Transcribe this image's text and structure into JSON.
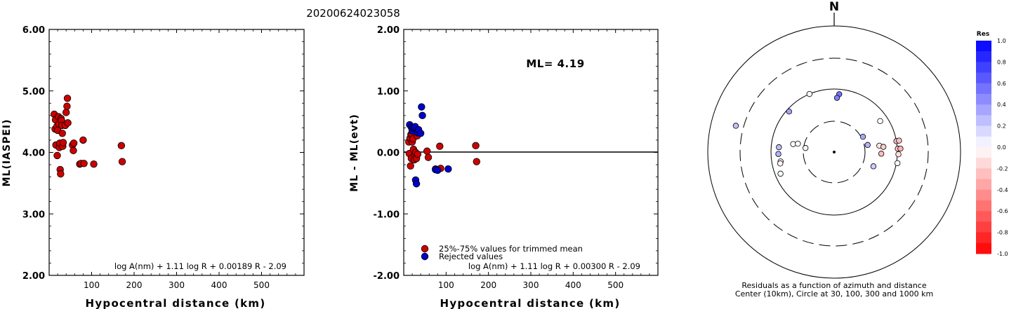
{
  "title": "20200624023058",
  "colors": {
    "accepted": "#cc0000",
    "rejected": "#0000cc",
    "zero_line": "#000000"
  },
  "chart_data": [
    {
      "type": "scatter",
      "id": "ml-vs-distance",
      "xlabel": "Hypocentral distance (km)",
      "ylabel": "ML(IASPEI)",
      "xlim": [
        0,
        600
      ],
      "ylim": [
        2.0,
        6.0
      ],
      "xticks": [
        "100",
        "200",
        "300",
        "400",
        "500"
      ],
      "yticks": [
        "2.00",
        "3.00",
        "4.00",
        "5.00",
        "6.00"
      ],
      "formula": "log A(nm) + 1.11 log R + 0.00189 R - 2.09",
      "series": [
        {
          "role": "accepted",
          "points": [
            [
              12,
              4.62
            ],
            [
              14,
              4.38
            ],
            [
              15,
              4.53
            ],
            [
              16,
              4.12
            ],
            [
              18,
              4.42
            ],
            [
              19,
              3.95
            ],
            [
              20,
              4.36
            ],
            [
              22,
              4.58
            ],
            [
              23,
              4.46
            ],
            [
              24,
              4.08
            ],
            [
              25,
              4.15
            ],
            [
              26,
              3.72
            ],
            [
              27,
              3.65
            ],
            [
              28,
              4.55
            ],
            [
              29,
              4.52
            ],
            [
              30,
              4.44
            ],
            [
              31,
              4.31
            ],
            [
              32,
              4.1
            ],
            [
              33,
              4.16
            ],
            [
              38,
              4.44
            ],
            [
              40,
              4.65
            ],
            [
              42,
              4.75
            ],
            [
              43,
              4.88
            ],
            [
              44,
              4.48
            ],
            [
              55,
              4.12
            ],
            [
              57,
              4.03
            ],
            [
              58,
              4.15
            ],
            [
              72,
              3.81
            ],
            [
              75,
              3.82
            ],
            [
              80,
              4.2
            ],
            [
              82,
              3.82
            ],
            [
              105,
              3.81
            ],
            [
              170,
              4.11
            ],
            [
              172,
              3.85
            ]
          ]
        }
      ]
    },
    {
      "type": "scatter",
      "id": "residual-vs-distance",
      "xlabel": "Hypocentral distance (km)",
      "ylabel": "ML - ML(evt)",
      "xlim": [
        0,
        600
      ],
      "ylim": [
        -2.0,
        2.0
      ],
      "xticks": [
        "100",
        "200",
        "300",
        "400",
        "500"
      ],
      "yticks": [
        "-2.00",
        "-1.00",
        "0.00",
        "1.00",
        "2.00"
      ],
      "annotation": "ML= 4.19",
      "formula": "log A(nm) + 1.11 log R + 0.00300 R - 2.09",
      "legend": [
        {
          "role": "accepted",
          "label": "25%-75% values for trimmed mean"
        },
        {
          "role": "rejected",
          "label": "Rejected values"
        }
      ],
      "series": [
        {
          "role": "accepted",
          "points": [
            [
              12,
              0.17
            ],
            [
              13,
              -0.02
            ],
            [
              15,
              0.23
            ],
            [
              16,
              -0.22
            ],
            [
              17,
              0.29
            ],
            [
              18,
              -0.1
            ],
            [
              19,
              0.3
            ],
            [
              20,
              0.17
            ],
            [
              22,
              0.22
            ],
            [
              23,
              0.05
            ],
            [
              25,
              -0.12
            ],
            [
              26,
              -0.04
            ],
            [
              28,
              0.0
            ],
            [
              30,
              -0.1
            ],
            [
              32,
              0.27
            ],
            [
              33,
              -0.03
            ],
            [
              55,
              0.02
            ],
            [
              58,
              -0.08
            ],
            [
              75,
              -0.27
            ],
            [
              85,
              0.1
            ],
            [
              87,
              -0.26
            ],
            [
              170,
              0.11
            ],
            [
              172,
              -0.15
            ]
          ]
        },
        {
          "role": "rejected",
          "points": [
            [
              14,
              0.45
            ],
            [
              18,
              0.41
            ],
            [
              20,
              0.35
            ],
            [
              22,
              0.4
            ],
            [
              25,
              0.4
            ],
            [
              27,
              0.42
            ],
            [
              28,
              -0.45
            ],
            [
              30,
              -0.51
            ],
            [
              33,
              0.32
            ],
            [
              35,
              0.37
            ],
            [
              40,
              0.31
            ],
            [
              42,
              0.74
            ],
            [
              44,
              0.6
            ],
            [
              75,
              -0.28
            ],
            [
              80,
              -0.29
            ],
            [
              105,
              -0.27
            ]
          ]
        }
      ]
    },
    {
      "type": "scatter",
      "id": "azimuth-residuals",
      "north_label": "N",
      "caption_lines": [
        "Residuals as a function of azimuth and distance",
        "Center (10km), Circle at 30, 100, 300 and 1000 km"
      ],
      "rings_km": [
        30,
        100,
        300,
        1000
      ],
      "colorbar": {
        "title": "Res",
        "ticks": [
          "1.0",
          "0.8",
          "0.6",
          "0.4",
          "0.2",
          "0.0",
          "-0.2",
          "-0.4",
          "-0.6",
          "-0.8",
          "-1.0"
        ],
        "range": [
          -1.0,
          1.0
        ]
      },
      "stations": [
        {
          "az": 337,
          "dist_km": 100,
          "res": 0.0
        },
        {
          "az": 312,
          "dist_km": 91,
          "res": 0.36
        },
        {
          "az": 285,
          "dist_km": 400,
          "res": 0.24
        },
        {
          "az": 5,
          "dist_km": 83,
          "res": 0.55
        },
        {
          "az": 3,
          "dist_km": 72,
          "res": 0.5
        },
        {
          "az": 56,
          "dist_km": 75,
          "res": 0.01
        },
        {
          "az": 281,
          "dist_km": 45,
          "res": 0.0
        },
        {
          "az": 283,
          "dist_km": 38,
          "res": 0.0
        },
        {
          "az": 278,
          "dist_km": 28,
          "res": 0.04
        },
        {
          "az": 275,
          "dist_km": 75,
          "res": 0.25
        },
        {
          "az": 268,
          "dist_km": 76,
          "res": 0.3
        },
        {
          "az": 260,
          "dist_km": 72,
          "res": -0.1
        },
        {
          "az": 248,
          "dist_km": 82,
          "res": 0.0
        },
        {
          "az": 258,
          "dist_km": 74,
          "res": -0.03
        },
        {
          "az": 62,
          "dist_km": 32,
          "res": 0.35
        },
        {
          "az": 78,
          "dist_km": 34,
          "res": 0.3
        },
        {
          "az": 110,
          "dist_km": 45,
          "res": 0.2
        },
        {
          "az": 82,
          "dist_km": 52,
          "res": -0.1
        },
        {
          "az": 84,
          "dist_km": 60,
          "res": -0.2
        },
        {
          "az": 92,
          "dist_km": 55,
          "res": -0.26
        },
        {
          "az": 80,
          "dist_km": 100,
          "res": -0.25
        },
        {
          "az": 87,
          "dist_km": 102,
          "res": -0.2
        },
        {
          "az": 80,
          "dist_km": 110,
          "res": -0.25
        },
        {
          "az": 87,
          "dist_km": 112,
          "res": -0.3
        },
        {
          "az": 92,
          "dist_km": 104,
          "res": -0.12
        },
        {
          "az": 100,
          "dist_km": 104,
          "res": 0.0
        }
      ]
    }
  ]
}
